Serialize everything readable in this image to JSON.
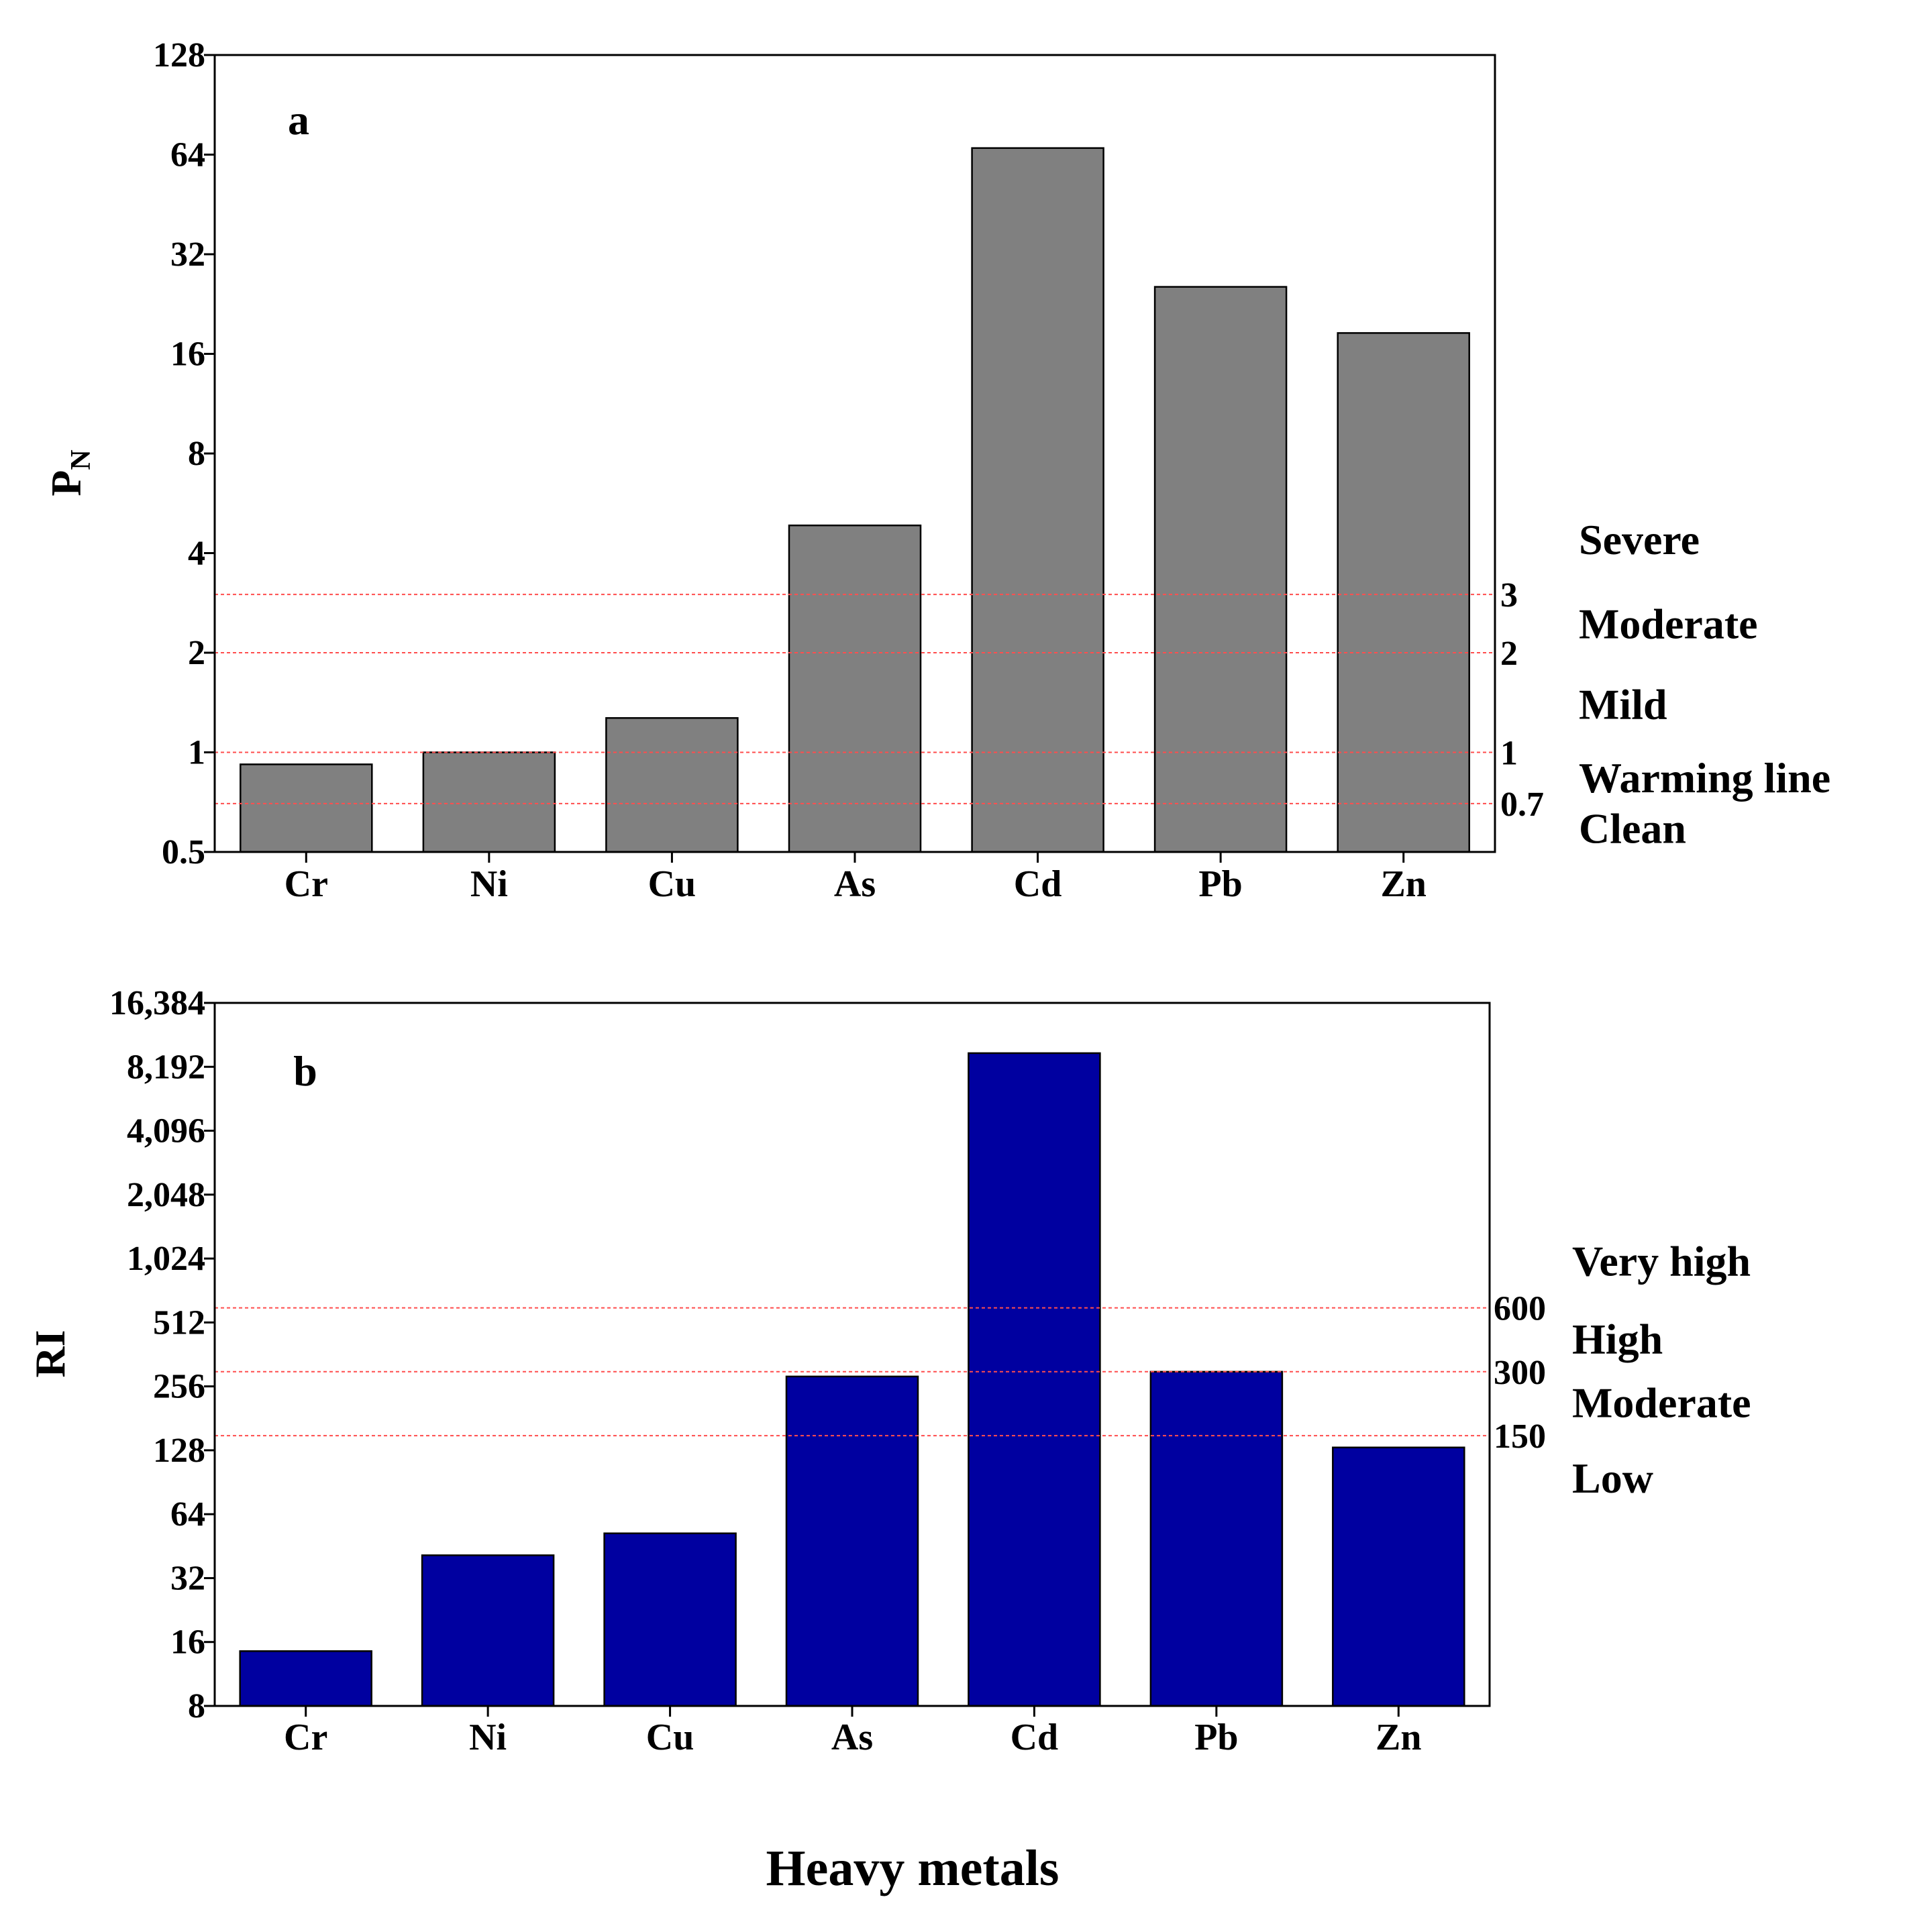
{
  "chart_data": [
    {
      "type": "bar",
      "panel_label": "a",
      "ylabel": "P",
      "ylabel_subscript": "N",
      "yscale": "log2",
      "ylim": [
        0.5,
        128
      ],
      "yticks": [
        "128",
        "64",
        "32",
        "16",
        "8",
        "4",
        "2",
        "1",
        "0.5"
      ],
      "categories": [
        "Cr",
        "Ni",
        "Cu",
        "As",
        "Cd",
        "Pb",
        "Zn"
      ],
      "values": [
        0.92,
        1.0,
        1.27,
        4.85,
        67,
        25.5,
        18.5
      ],
      "bar_color": "#808080",
      "thresholds": [
        {
          "value": 3,
          "label": "3"
        },
        {
          "value": 2,
          "label": "2"
        },
        {
          "value": 1,
          "label": "1"
        },
        {
          "value": 0.7,
          "label": "0.7"
        }
      ],
      "threshold_color": "#ff4d4d",
      "levels": [
        {
          "label": "Severe",
          "value": 4.4
        },
        {
          "label": "Moderate",
          "value": 2.45
        },
        {
          "label": "Mild",
          "value": 1.4
        },
        {
          "label": "Warming line",
          "value": 0.84
        },
        {
          "label": "Clean",
          "value": 0.59
        }
      ]
    },
    {
      "type": "bar",
      "panel_label": "b",
      "ylabel": "RI",
      "yscale": "log2",
      "ylim": [
        8,
        16384
      ],
      "yticks": [
        "16,384",
        "8,192",
        "4,096",
        "2,048",
        "1,024",
        "512",
        "256",
        "128",
        "64",
        "32",
        "16",
        "8"
      ],
      "categories": [
        "Cr",
        "Ni",
        "Cu",
        "As",
        "Cd",
        "Pb",
        "Zn"
      ],
      "values": [
        14.5,
        41,
        52,
        285,
        9500,
        300,
        132
      ],
      "bar_color": "#0000a0",
      "thresholds": [
        {
          "value": 600,
          "label": "600"
        },
        {
          "value": 300,
          "label": "300"
        },
        {
          "value": 150,
          "label": "150"
        }
      ],
      "threshold_color": "#ff4d4d",
      "levels": [
        {
          "label": "Very high",
          "value": 1000
        },
        {
          "label": "High",
          "value": 430
        },
        {
          "label": "Moderate",
          "value": 215
        },
        {
          "label": "Low",
          "value": 95
        }
      ]
    }
  ],
  "xlabel": "Heavy metals"
}
